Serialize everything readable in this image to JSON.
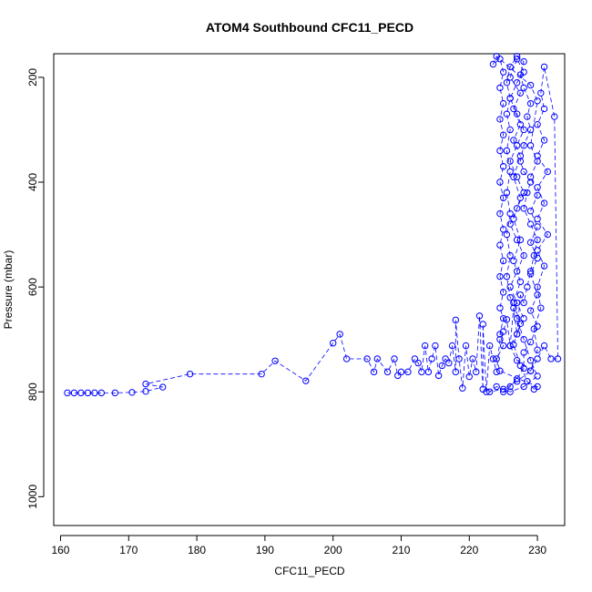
{
  "chart_data": {
    "type": "scatter",
    "title": "ATOM4 Southbound CFC11_PECD",
    "xlabel": "CFC11_PECD",
    "ylabel": "Pressure (mbar)",
    "xlim": [
      159,
      234
    ],
    "ylim": [
      1055,
      155
    ],
    "y_inverted": true,
    "x_ticks": [
      160,
      170,
      180,
      190,
      200,
      210,
      220,
      230
    ],
    "y_ticks": [
      200,
      400,
      600,
      800,
      1000
    ],
    "grid": false,
    "legend": "none",
    "marker": "open-circle",
    "line_style": "dashed",
    "series": [
      {
        "color": "#0000ff",
        "points": [
          [
            161,
            802
          ],
          [
            162,
            802
          ],
          [
            163,
            802
          ],
          [
            164,
            802
          ],
          [
            165,
            802
          ],
          [
            166,
            802
          ],
          [
            168,
            802
          ],
          [
            170.5,
            801
          ],
          [
            172.5,
            799
          ],
          [
            175,
            791
          ],
          [
            172.5,
            785
          ],
          [
            179,
            766
          ],
          [
            189.5,
            766
          ],
          [
            191.5,
            741
          ],
          [
            196,
            779
          ],
          [
            200,
            707
          ],
          [
            201,
            690
          ],
          [
            202,
            737
          ],
          [
            205,
            737
          ],
          [
            206,
            762
          ],
          [
            206.5,
            737
          ],
          [
            208,
            762
          ],
          [
            209,
            737
          ],
          [
            209.5,
            769
          ],
          [
            210,
            762
          ],
          [
            211,
            762
          ],
          [
            212,
            737
          ],
          [
            212.5,
            745
          ],
          [
            213,
            762
          ],
          [
            213.5,
            712
          ],
          [
            214,
            762
          ],
          [
            214.5,
            737
          ],
          [
            215,
            712
          ],
          [
            215.5,
            769
          ],
          [
            216,
            750
          ],
          [
            216.5,
            737
          ],
          [
            217,
            745
          ],
          [
            217.5,
            712
          ],
          [
            218,
            762
          ],
          [
            218,
            663
          ],
          [
            218.5,
            737
          ],
          [
            219,
            793
          ],
          [
            219.5,
            712
          ],
          [
            220,
            771
          ],
          [
            220.5,
            737
          ],
          [
            221,
            762
          ],
          [
            221.5,
            655
          ],
          [
            222,
            795
          ],
          [
            222,
            671
          ],
          [
            222.5,
            800
          ],
          [
            223,
            712
          ],
          [
            223.5,
            737
          ],
          [
            224,
            762
          ],
          [
            224.5,
            700
          ],
          [
            225,
            685
          ],
          [
            225.5,
            662
          ],
          [
            226,
            712
          ],
          [
            226.5,
            640
          ],
          [
            227,
            690
          ],
          [
            227.5,
            615
          ],
          [
            228,
            630
          ],
          [
            228.5,
            600
          ],
          [
            229,
            570
          ],
          [
            229.5,
            540
          ],
          [
            230,
            510
          ],
          [
            229,
            480
          ],
          [
            228,
            450
          ],
          [
            228.5,
            420
          ],
          [
            229,
            400
          ],
          [
            228,
            380
          ],
          [
            227.5,
            360
          ],
          [
            228,
            330
          ],
          [
            229,
            300
          ],
          [
            228.5,
            275
          ],
          [
            229,
            250
          ],
          [
            228,
            220
          ],
          [
            227.5,
            195
          ],
          [
            228,
            170
          ],
          [
            227,
            160
          ],
          [
            226,
            180
          ],
          [
            225.5,
            210
          ],
          [
            226,
            240
          ],
          [
            225.5,
            270
          ],
          [
            226,
            300
          ],
          [
            225.5,
            340
          ],
          [
            226,
            380
          ],
          [
            225.5,
            420
          ],
          [
            226,
            460
          ],
          [
            225.5,
            500
          ],
          [
            226,
            540
          ],
          [
            225.5,
            580
          ],
          [
            226,
            620
          ],
          [
            227,
            660
          ],
          [
            228,
            700
          ],
          [
            229,
            740
          ],
          [
            230,
            770
          ],
          [
            228,
            790
          ],
          [
            226,
            800
          ],
          [
            224,
            790
          ],
          [
            223,
            800
          ],
          [
            225,
            795
          ],
          [
            227,
            780
          ],
          [
            229,
            760
          ],
          [
            230,
            737
          ],
          [
            231,
            712
          ],
          [
            232,
            737
          ],
          [
            233,
            737
          ],
          [
            232.5,
            275
          ],
          [
            231,
            180
          ],
          [
            230.5,
            230
          ],
          [
            231,
            260
          ],
          [
            230,
            290
          ],
          [
            231,
            320
          ],
          [
            230,
            350
          ],
          [
            231.5,
            380
          ],
          [
            230,
            410
          ],
          [
            231,
            440
          ],
          [
            230,
            470
          ],
          [
            231.5,
            500
          ],
          [
            230,
            530
          ],
          [
            231,
            560
          ],
          [
            230,
            600
          ],
          [
            230.5,
            640
          ],
          [
            229.5,
            680
          ],
          [
            230,
            720
          ],
          [
            229,
            760
          ],
          [
            227,
            740
          ],
          [
            226,
            712
          ],
          [
            227,
            690
          ],
          [
            228,
            660
          ],
          [
            227,
            630
          ],
          [
            226,
            600
          ],
          [
            227,
            570
          ],
          [
            228,
            540
          ],
          [
            227,
            510
          ],
          [
            226,
            480
          ],
          [
            227,
            450
          ],
          [
            228,
            420
          ],
          [
            227,
            390
          ],
          [
            226,
            360
          ],
          [
            227,
            330
          ],
          [
            228,
            300
          ],
          [
            227,
            270
          ],
          [
            226,
            240
          ],
          [
            227,
            210
          ],
          [
            228,
            190
          ],
          [
            227,
            165
          ],
          [
            226,
            200
          ],
          [
            227.5,
            230
          ],
          [
            226.5,
            260
          ],
          [
            227.5,
            290
          ],
          [
            226.5,
            320
          ],
          [
            227.5,
            350
          ],
          [
            226.5,
            390
          ],
          [
            227.5,
            430
          ],
          [
            226.5,
            470
          ],
          [
            227.5,
            510
          ],
          [
            226.5,
            550
          ],
          [
            227.5,
            590
          ],
          [
            226.5,
            630
          ],
          [
            227.5,
            670
          ],
          [
            226.5,
            710
          ],
          [
            227.5,
            750
          ],
          [
            228.5,
            780
          ],
          [
            229.5,
            795
          ],
          [
            230,
            790
          ],
          [
            224.5,
            760
          ],
          [
            224,
            737
          ],
          [
            225,
            712
          ],
          [
            224.5,
            690
          ],
          [
            225,
            660
          ],
          [
            224.5,
            640
          ],
          [
            225,
            610
          ],
          [
            224.5,
            580
          ],
          [
            225,
            550
          ],
          [
            224.5,
            520
          ],
          [
            225,
            490
          ],
          [
            224.5,
            460
          ],
          [
            225,
            430
          ],
          [
            224.5,
            400
          ],
          [
            225,
            370
          ],
          [
            224.5,
            340
          ],
          [
            225,
            310
          ],
          [
            224.5,
            280
          ],
          [
            225,
            250
          ],
          [
            224.5,
            220
          ],
          [
            225,
            190
          ],
          [
            224.5,
            165
          ],
          [
            223.5,
            175
          ],
          [
            224,
            160
          ],
          [
            229,
            215
          ],
          [
            230,
            245
          ],
          [
            229,
            330
          ],
          [
            230,
            360
          ],
          [
            229,
            390
          ],
          [
            230,
            425
          ],
          [
            229,
            455
          ],
          [
            230,
            485
          ],
          [
            229,
            515
          ],
          [
            230,
            545
          ],
          [
            229,
            575
          ],
          [
            230,
            615
          ],
          [
            229,
            645
          ],
          [
            230,
            675
          ],
          [
            229,
            705
          ],
          [
            228,
            725
          ],
          [
            228,
            755
          ],
          [
            227,
            775
          ],
          [
            226,
            790
          ],
          [
            225,
            800
          ]
        ]
      }
    ]
  }
}
